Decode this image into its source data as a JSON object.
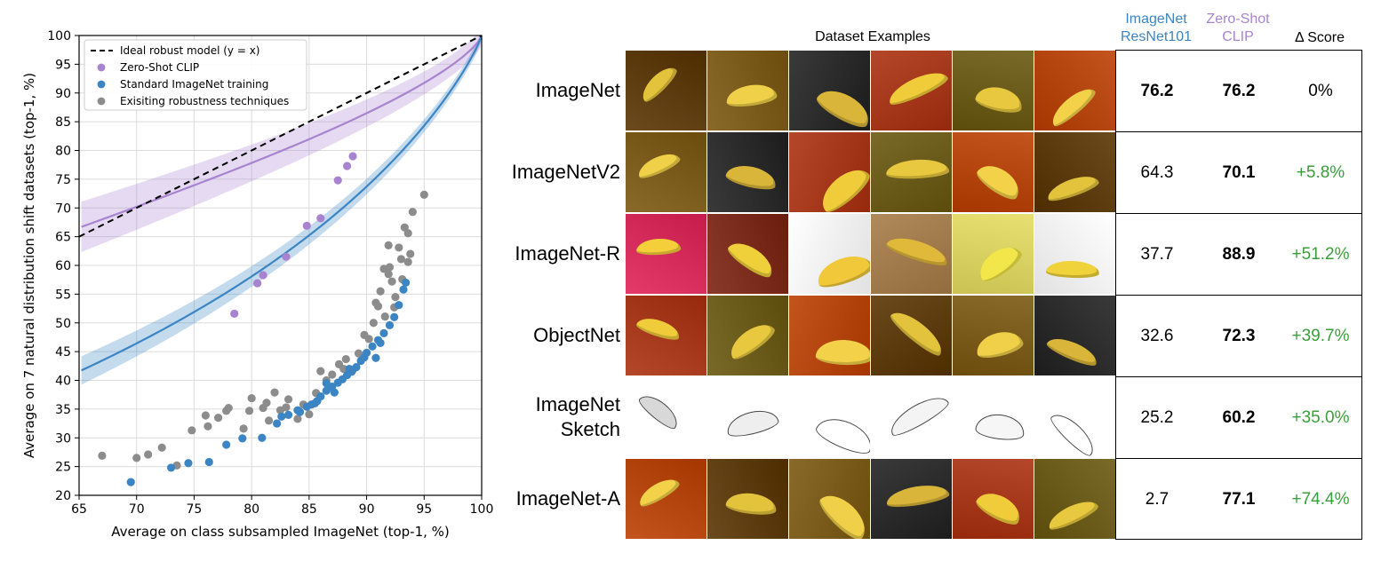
{
  "chart_data": {
    "type": "scatter",
    "xlabel": "Average on class subsampled ImageNet (top-1, %)",
    "ylabel": "Average on 7 natural distribution shift datasets (top-1, %)",
    "xlim": [
      65,
      100
    ],
    "ylim": [
      20,
      100
    ],
    "xticks": [
      "65",
      "70",
      "75",
      "80",
      "85",
      "90",
      "95",
      "100"
    ],
    "yticks": [
      "20",
      "25",
      "30",
      "35",
      "40",
      "45",
      "50",
      "55",
      "60",
      "65",
      "70",
      "75",
      "80",
      "85",
      "90",
      "95",
      "100"
    ],
    "grid": true,
    "legend_position": "top-left",
    "legend": [
      "Ideal robust model (y = x)",
      "Zero-Shot CLIP",
      "Standard ImageNet training",
      "Exisiting robustness techniques"
    ],
    "series": [
      {
        "name": "Zero-Shot CLIP",
        "color": "#a884d0",
        "points": [
          [
            78.5,
            51.6
          ],
          [
            80.5,
            56.9
          ],
          [
            81.0,
            58.3
          ],
          [
            83.0,
            61.5
          ],
          [
            84.8,
            66.9
          ],
          [
            86.0,
            68.2
          ],
          [
            87.5,
            74.8
          ],
          [
            88.3,
            77.3
          ],
          [
            88.8,
            79.0
          ]
        ]
      },
      {
        "name": "Standard ImageNet training",
        "color": "#3b85c4",
        "points": [
          [
            69.5,
            22.3
          ],
          [
            73.0,
            24.8
          ],
          [
            74.5,
            25.6
          ],
          [
            76.3,
            25.8
          ],
          [
            77.8,
            28.8
          ],
          [
            79.2,
            29.9
          ],
          [
            80.9,
            30.0
          ],
          [
            82.2,
            32.5
          ],
          [
            82.6,
            33.7
          ],
          [
            83.2,
            34.0
          ],
          [
            84.0,
            34.8
          ],
          [
            84.8,
            35.4
          ],
          [
            85.2,
            35.8
          ],
          [
            85.7,
            36.4
          ],
          [
            86.0,
            37.2
          ],
          [
            86.5,
            38.2
          ],
          [
            87.0,
            38.9
          ],
          [
            87.5,
            39.6
          ],
          [
            87.9,
            40.2
          ],
          [
            88.3,
            40.9
          ],
          [
            88.7,
            41.5
          ],
          [
            89.1,
            42.3
          ],
          [
            89.5,
            43.4
          ],
          [
            90.0,
            44.8
          ],
          [
            90.5,
            45.9
          ],
          [
            91.0,
            47.0
          ],
          [
            91.5,
            48.2
          ],
          [
            92.0,
            49.6
          ],
          [
            92.4,
            51.0
          ],
          [
            92.8,
            53.1
          ],
          [
            93.2,
            55.8
          ],
          [
            93.4,
            57.0
          ],
          [
            86.5,
            39.5
          ],
          [
            88.5,
            42.0
          ],
          [
            89.8,
            44.0
          ],
          [
            91.2,
            46.5
          ],
          [
            85.5,
            36.0
          ],
          [
            84.2,
            34.5
          ],
          [
            87.2,
            37.9
          ],
          [
            90.8,
            43.9
          ]
        ]
      },
      {
        "name": "Exisiting robustness techniques",
        "color": "#8c8c8c",
        "points": [
          [
            67.0,
            26.9
          ],
          [
            70.0,
            26.5
          ],
          [
            71.0,
            27.1
          ],
          [
            72.2,
            28.3
          ],
          [
            73.5,
            25.2
          ],
          [
            74.8,
            31.3
          ],
          [
            76.2,
            32.0
          ],
          [
            76.0,
            33.9
          ],
          [
            77.1,
            33.5
          ],
          [
            77.8,
            34.7
          ],
          [
            78.0,
            35.2
          ],
          [
            79.3,
            31.6
          ],
          [
            79.8,
            34.7
          ],
          [
            80.0,
            36.9
          ],
          [
            81.0,
            35.2
          ],
          [
            81.3,
            36.1
          ],
          [
            81.5,
            33.0
          ],
          [
            82.0,
            37.9
          ],
          [
            82.5,
            34.8
          ],
          [
            83.0,
            35.3
          ],
          [
            83.2,
            36.7
          ],
          [
            84.0,
            33.3
          ],
          [
            84.5,
            35.8
          ],
          [
            85.0,
            34.1
          ],
          [
            85.6,
            37.8
          ],
          [
            86.0,
            41.6
          ],
          [
            86.5,
            40.0
          ],
          [
            87.0,
            41.0
          ],
          [
            87.6,
            42.8
          ],
          [
            88.0,
            42.0
          ],
          [
            88.2,
            43.7
          ],
          [
            88.8,
            41.8
          ],
          [
            89.3,
            44.7
          ],
          [
            89.8,
            47.9
          ],
          [
            90.2,
            47.2
          ],
          [
            90.6,
            50.0
          ],
          [
            91.0,
            52.9
          ],
          [
            91.2,
            55.5
          ],
          [
            91.6,
            51.1
          ],
          [
            91.9,
            58.5
          ],
          [
            92.2,
            57.2
          ],
          [
            92.0,
            59.7
          ],
          [
            92.5,
            54.5
          ],
          [
            92.8,
            63.1
          ],
          [
            93.0,
            61.1
          ],
          [
            93.3,
            66.6
          ],
          [
            93.6,
            65.6
          ],
          [
            93.8,
            62.0
          ],
          [
            94.0,
            69.3
          ],
          [
            91.9,
            63.5
          ],
          [
            95.0,
            72.3
          ],
          [
            91.5,
            59.4
          ],
          [
            90.8,
            53.5
          ],
          [
            92.4,
            52.7
          ],
          [
            93.1,
            57.6
          ],
          [
            93.6,
            60.6
          ]
        ]
      }
    ],
    "lines": [
      {
        "name": "Ideal robust model (y = x)",
        "style": "dashed",
        "color": "#000000"
      }
    ]
  },
  "table": {
    "section_title": "Dataset Examples",
    "headers": {
      "resnet": [
        "ImageNet",
        "ResNet101"
      ],
      "clip": [
        "Zero-Shot",
        "CLIP"
      ],
      "delta": "Δ Score"
    },
    "header_colors": {
      "resnet": "#3b85c4",
      "clip": "#a884d0",
      "positive": "#3a9e3a"
    },
    "rows": [
      {
        "label": [
          "ImageNet"
        ],
        "resnet": "76.2",
        "clip": "76.2",
        "delta": "0%",
        "resnet_bold": true,
        "style": "photo"
      },
      {
        "label": [
          "ImageNetV2"
        ],
        "resnet": "64.3",
        "clip": "70.1",
        "delta": "+5.8%",
        "resnet_bold": false,
        "style": "photo"
      },
      {
        "label": [
          "ImageNet-R"
        ],
        "resnet": "37.7",
        "clip": "88.9",
        "delta": "+51.2%",
        "resnet_bold": false,
        "style": "render"
      },
      {
        "label": [
          "ObjectNet"
        ],
        "resnet": "32.6",
        "clip": "72.3",
        "delta": "+39.7%",
        "resnet_bold": false,
        "style": "photo"
      },
      {
        "label": [
          "ImageNet",
          "Sketch"
        ],
        "resnet": "25.2",
        "clip": "60.2",
        "delta": "+35.0%",
        "resnet_bold": false,
        "style": "sketch"
      },
      {
        "label": [
          "ImageNet-A"
        ],
        "resnet": "2.7",
        "clip": "77.1",
        "delta": "+74.4%",
        "resnet_bold": false,
        "style": "photo"
      }
    ]
  }
}
